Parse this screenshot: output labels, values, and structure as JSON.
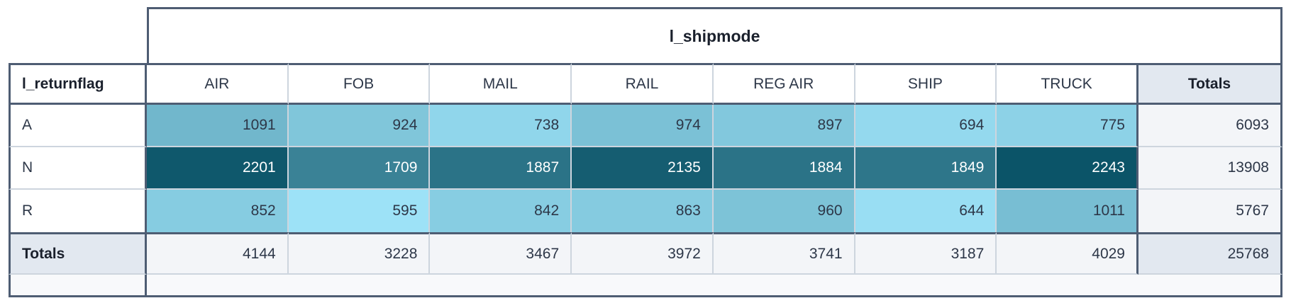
{
  "table": {
    "column_group_label": "l_shipmode",
    "row_group_label": "l_returnflag",
    "columns": [
      "AIR",
      "FOB",
      "MAIL",
      "RAIL",
      "REG AIR",
      "SHIP",
      "TRUCK"
    ],
    "totals_label": "Totals",
    "rows": [
      {
        "label": "A",
        "values": [
          1091,
          924,
          738,
          974,
          897,
          694,
          775
        ],
        "total": 6093
      },
      {
        "label": "N",
        "values": [
          2201,
          1709,
          1887,
          2135,
          1884,
          1849,
          2243
        ],
        "total": 13908
      },
      {
        "label": "R",
        "values": [
          852,
          595,
          842,
          863,
          960,
          644,
          1011
        ],
        "total": 5767
      }
    ],
    "column_totals": [
      4144,
      3228,
      3467,
      3972,
      3741,
      3187,
      4029
    ],
    "grand_total": 25768
  },
  "heatmap": {
    "min": 595,
    "max": 2243,
    "color_min": "#9de2f7",
    "color_max": "#0b5468",
    "text_dark": "#2d3748",
    "text_light": "#ffffff",
    "light_text_threshold": 0.5
  },
  "colors": {
    "border_dark": "#4e5d73",
    "border_thin": "#cdd5de",
    "totals_header_bg": "#e2e8f0",
    "totals_cell_bg": "#f3f5f8",
    "footer_bg": "#f8f9fb",
    "header_text": "#1a202c",
    "cell_text": "#2d3748"
  },
  "chart_data": {
    "type": "heatmap",
    "title": "l_shipmode",
    "xlabel": "l_shipmode",
    "ylabel": "l_returnflag",
    "categories": [
      "AIR",
      "FOB",
      "MAIL",
      "RAIL",
      "REG AIR",
      "SHIP",
      "TRUCK"
    ],
    "series": [
      {
        "name": "A",
        "values": [
          1091,
          924,
          738,
          974,
          897,
          694,
          775
        ]
      },
      {
        "name": "N",
        "values": [
          2201,
          1709,
          1887,
          2135,
          1884,
          1849,
          2243
        ]
      },
      {
        "name": "R",
        "values": [
          852,
          595,
          842,
          863,
          960,
          644,
          1011
        ]
      }
    ],
    "row_totals": [
      6093,
      13908,
      5767
    ],
    "column_totals": [
      4144,
      3228,
      3467,
      3972,
      3741,
      3187,
      4029
    ],
    "grand_total": 25768,
    "value_range": [
      595,
      2243
    ],
    "colorscale": [
      "#9de2f7",
      "#0b5468"
    ],
    "legend_position": "none",
    "grid": true
  }
}
